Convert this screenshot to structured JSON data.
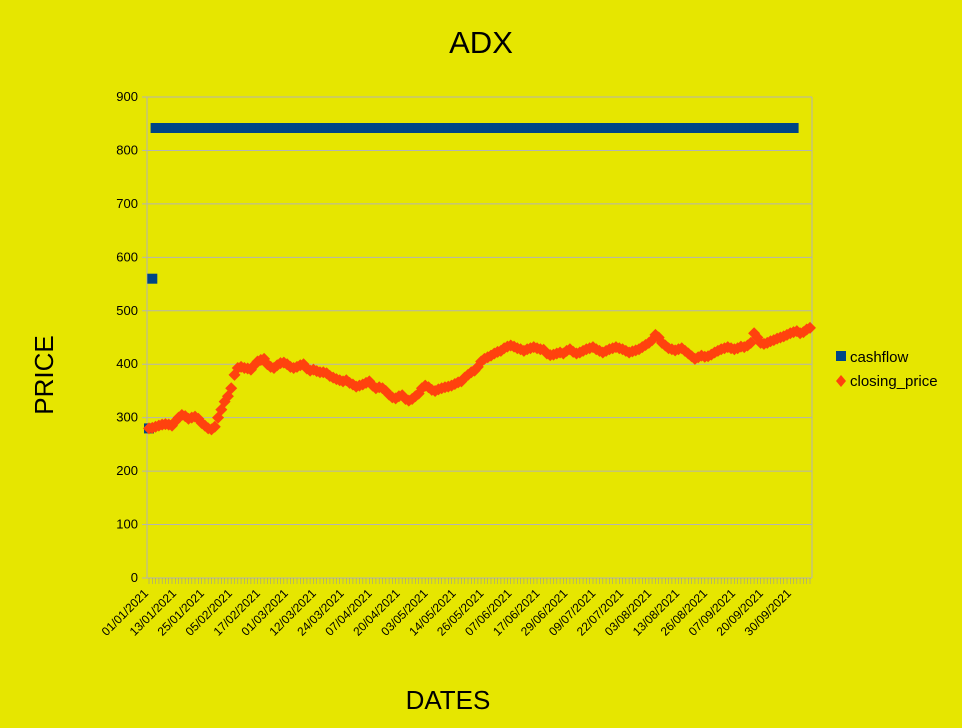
{
  "chart_data": {
    "type": "scatter",
    "title": "ADX",
    "xlabel": "DATES",
    "ylabel": "PRICE",
    "ylim": [
      0,
      900
    ],
    "yticks": [
      0,
      100,
      200,
      300,
      400,
      500,
      600,
      700,
      800,
      900
    ],
    "grid": true,
    "legend_position": "right",
    "x_tick_labels": [
      "01/01/2021",
      "13/01/2021",
      "25/01/2021",
      "05/02/2021",
      "17/02/2021",
      "01/03/2021",
      "12/03/2021",
      "24/03/2021",
      "07/04/2021",
      "20/04/2021",
      "03/05/2021",
      "14/05/2021",
      "26/05/2021",
      "07/06/2021",
      "17/06/2021",
      "29/06/2021",
      "09/07/2021",
      "22/07/2021",
      "03/08/2021",
      "13/08/2021",
      "26/08/2021",
      "07/09/2021",
      "20/09/2021",
      "30/09/2021"
    ],
    "colors": {
      "background": "#e6e600",
      "cashflow": "#004586",
      "closing_price": "#ff420e",
      "grid": "#b3b3b3"
    },
    "series": [
      {
        "name": "cashflow",
        "marker": "square",
        "color": "#004586",
        "values": [
          280,
          560,
          842,
          842,
          842,
          842,
          842,
          842,
          842,
          842,
          842,
          842,
          842,
          842,
          842,
          842,
          842,
          842,
          842,
          842,
          842,
          842,
          842,
          842,
          842,
          842,
          842,
          842,
          842,
          842,
          842,
          842,
          842,
          842,
          842,
          842,
          842,
          842,
          842,
          842,
          842,
          842,
          842,
          842,
          842,
          842,
          842,
          842,
          842,
          842,
          842,
          842,
          842,
          842,
          842,
          842,
          842,
          842,
          842,
          842,
          842,
          842,
          842,
          842,
          842,
          842,
          842,
          842,
          842,
          842,
          842,
          842,
          842,
          842,
          842,
          842,
          842,
          842,
          842,
          842,
          842,
          842,
          842,
          842,
          842,
          842,
          842,
          842,
          842,
          842,
          842,
          842,
          842,
          842,
          842,
          842,
          842,
          842,
          842,
          842,
          842,
          842,
          842,
          842,
          842,
          842,
          842,
          842,
          842,
          842,
          842,
          842,
          842,
          842,
          842,
          842,
          842,
          842,
          842,
          842,
          842,
          842,
          842,
          842,
          842,
          842,
          842,
          842,
          842,
          842,
          842,
          842,
          842,
          842,
          842,
          842,
          842,
          842,
          842,
          842,
          842,
          842,
          842,
          842,
          842,
          842,
          842,
          842,
          842,
          842,
          842,
          842,
          842,
          842,
          842,
          842,
          842,
          842,
          842,
          842,
          842,
          842,
          842,
          842,
          842,
          842,
          842,
          842,
          842,
          842,
          842,
          842,
          842,
          842,
          842,
          842,
          842,
          842,
          842,
          842,
          842,
          842,
          842,
          842,
          842,
          842,
          842,
          842,
          842,
          842,
          842,
          842,
          842,
          842,
          842,
          842,
          842
        ]
      },
      {
        "name": "closing_price",
        "marker": "diamond",
        "color": "#ff420e",
        "values": [
          280,
          281,
          283,
          285,
          287,
          288,
          287,
          285,
          293,
          300,
          305,
          303,
          298,
          300,
          302,
          298,
          290,
          285,
          280,
          278,
          283,
          300,
          315,
          330,
          340,
          355,
          380,
          393,
          395,
          393,
          392,
          390,
          398,
          405,
          408,
          410,
          400,
          395,
          393,
          398,
          402,
          403,
          400,
          395,
          393,
          395,
          398,
          400,
          392,
          388,
          390,
          387,
          385,
          385,
          383,
          378,
          375,
          372,
          370,
          368,
          370,
          365,
          362,
          358,
          360,
          362,
          365,
          368,
          360,
          355,
          357,
          355,
          350,
          343,
          338,
          336,
          340,
          342,
          335,
          332,
          335,
          340,
          345,
          355,
          360,
          357,
          352,
          350,
          353,
          355,
          357,
          358,
          360,
          363,
          366,
          368,
          375,
          380,
          385,
          388,
          395,
          405,
          410,
          413,
          416,
          420,
          423,
          425,
          430,
          433,
          435,
          433,
          430,
          428,
          425,
          428,
          430,
          432,
          430,
          428,
          427,
          420,
          417,
          418,
          420,
          422,
          420,
          425,
          428,
          423,
          420,
          422,
          425,
          428,
          430,
          432,
          428,
          425,
          422,
          425,
          428,
          430,
          432,
          430,
          428,
          425,
          422,
          424,
          426,
          428,
          432,
          436,
          440,
          445,
          455,
          450,
          440,
          435,
          430,
          428,
          426,
          428,
          430,
          425,
          420,
          415,
          410,
          413,
          416,
          414,
          415,
          418,
          422,
          425,
          428,
          430,
          432,
          430,
          428,
          430,
          433,
          432,
          435,
          440,
          458,
          450,
          440,
          438,
          440,
          443,
          445,
          448,
          450,
          452,
          455,
          458,
          460,
          462,
          458,
          460,
          465,
          468
        ]
      }
    ]
  }
}
